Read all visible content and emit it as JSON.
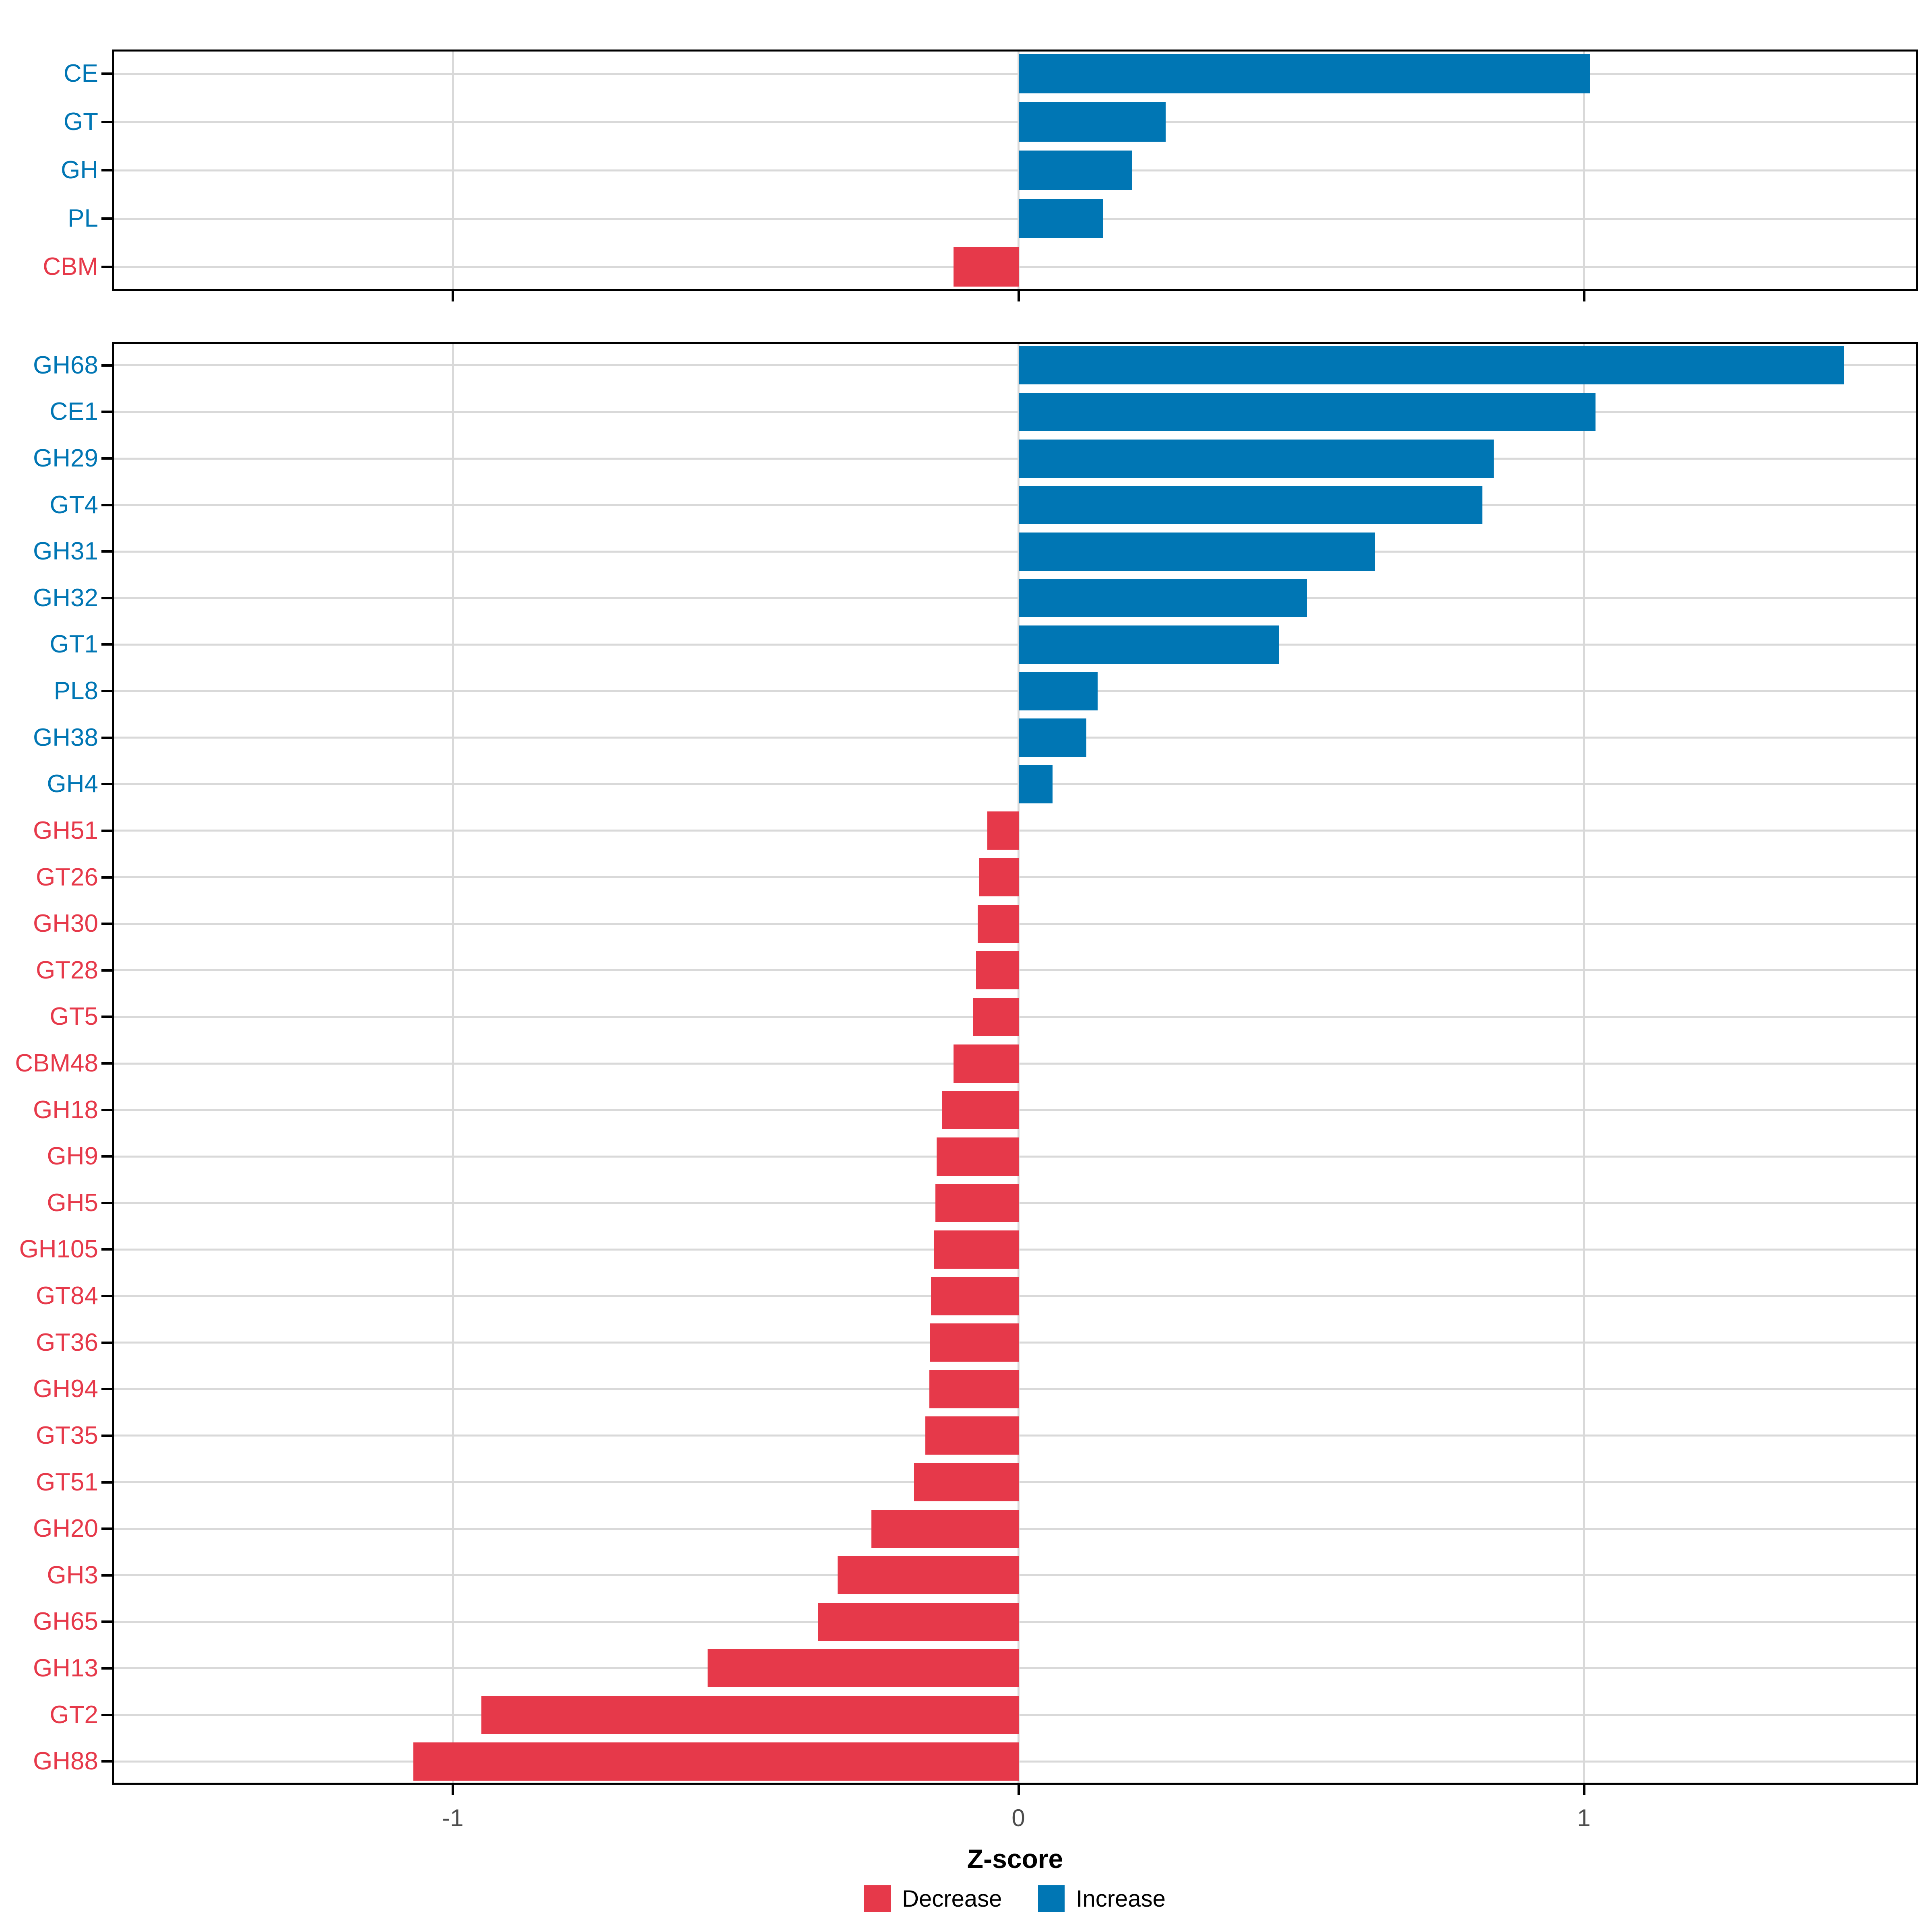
{
  "colors": {
    "increase": "#0076b4",
    "decrease": "#e6394a",
    "gridline": "#d9d9d9",
    "axis_text": "#4d4d4d",
    "panel_border": "#000000",
    "background": "#ffffff"
  },
  "x_axis": {
    "title": "Z-score",
    "ticks": [
      -1,
      0,
      1
    ],
    "tick_labels": [
      "-1",
      "0",
      "1"
    ],
    "range": [
      -1.6,
      1.59
    ]
  },
  "legend": {
    "items": [
      {
        "label": "Decrease",
        "color": "#e6394a"
      },
      {
        "label": "Increase",
        "color": "#0076b4"
      }
    ]
  },
  "chart_data": [
    {
      "type": "bar",
      "orientation": "horizontal",
      "panel": "top",
      "title": "",
      "xlabel": "Z-score",
      "ylabel": "",
      "xlim": [
        -1.6,
        1.59
      ],
      "grid": "on",
      "categories": [
        "CE",
        "GT",
        "GH",
        "PL",
        "CBM"
      ],
      "values": [
        1.01,
        0.26,
        0.2,
        0.15,
        -0.115
      ]
    },
    {
      "type": "bar",
      "orientation": "horizontal",
      "panel": "bottom",
      "title": "",
      "xlabel": "Z-score",
      "ylabel": "",
      "xlim": [
        -1.6,
        1.59
      ],
      "grid": "on",
      "categories": [
        "GH68",
        "CE1",
        "GH29",
        "GT4",
        "GH31",
        "GH32",
        "GT1",
        "PL8",
        "GH38",
        "GH4",
        "GH51",
        "GT26",
        "GH30",
        "GT28",
        "GT5",
        "CBM48",
        "GH18",
        "GH9",
        "GH5",
        "GH105",
        "GT84",
        "GT36",
        "GH94",
        "GT35",
        "GT51",
        "GH20",
        "GH3",
        "GH65",
        "GH13",
        "GT2",
        "GH88"
      ],
      "values": [
        1.46,
        1.02,
        0.84,
        0.82,
        0.63,
        0.51,
        0.46,
        0.14,
        0.12,
        0.06,
        -0.055,
        -0.07,
        -0.072,
        -0.075,
        -0.08,
        -0.115,
        -0.135,
        -0.145,
        -0.147,
        -0.15,
        -0.155,
        -0.156,
        -0.158,
        -0.165,
        -0.185,
        -0.26,
        -0.32,
        -0.355,
        -0.55,
        -0.95,
        -1.07
      ]
    }
  ]
}
